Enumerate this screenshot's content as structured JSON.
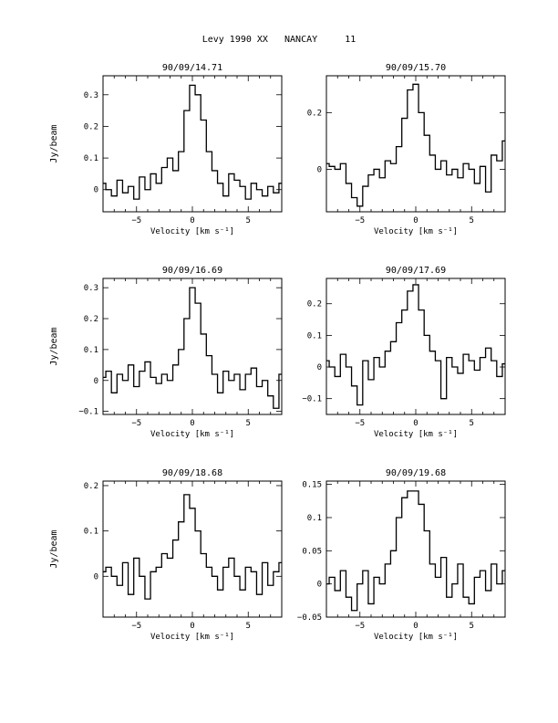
{
  "page_title": "Levy 1990 XX   NANCAY     11",
  "chart_data": [
    {
      "type": "line",
      "title": "90/09/14.71",
      "xlabel": "Velocity [km s⁻¹]",
      "ylabel": "Jy/beam",
      "xlim": [
        -8,
        8
      ],
      "ylim": [
        -0.07,
        0.36
      ],
      "xticks": [
        -5,
        0,
        5
      ],
      "xtick_labels": [
        "−5",
        "0",
        "5"
      ],
      "yticks": [
        0,
        0.1,
        0.2,
        0.3
      ],
      "ytick_labels": [
        "0",
        "0.1",
        "0.2",
        "0.3"
      ],
      "series": [
        {
          "x": [
            -8,
            -7.5,
            -7,
            -6.5,
            -6,
            -5.5,
            -5,
            -4.5,
            -4,
            -3.5,
            -3,
            -2.5,
            -2,
            -1.5,
            -1,
            -0.5,
            0,
            0.5,
            1,
            1.5,
            2,
            2.5,
            3,
            3.5,
            4,
            4.5,
            5,
            5.5,
            6,
            6.5,
            7,
            7.5,
            8
          ],
          "y": [
            0.02,
            0.0,
            -0.02,
            0.03,
            -0.01,
            0.01,
            -0.03,
            0.04,
            0.0,
            0.05,
            0.02,
            0.07,
            0.1,
            0.06,
            0.12,
            0.25,
            0.33,
            0.3,
            0.22,
            0.12,
            0.06,
            0.02,
            -0.02,
            0.05,
            0.03,
            0.01,
            -0.03,
            0.02,
            0.0,
            -0.02,
            0.01,
            -0.01,
            0.02
          ]
        }
      ]
    },
    {
      "type": "line",
      "title": "90/09/15.70",
      "xlabel": "Velocity [km s⁻¹]",
      "ylabel": "",
      "xlim": [
        -8,
        8
      ],
      "ylim": [
        -0.15,
        0.33
      ],
      "xticks": [
        -5,
        0,
        5
      ],
      "xtick_labels": [
        "−5",
        "0",
        "5"
      ],
      "yticks": [
        0,
        0.2
      ],
      "ytick_labels": [
        "0",
        "0.2"
      ],
      "series": [
        {
          "x": [
            -8,
            -7.5,
            -7,
            -6.5,
            -6,
            -5.5,
            -5,
            -4.5,
            -4,
            -3.5,
            -3,
            -2.5,
            -2,
            -1.5,
            -1,
            -0.5,
            0,
            0.5,
            1,
            1.5,
            2,
            2.5,
            3,
            3.5,
            4,
            4.5,
            5,
            5.5,
            6,
            6.5,
            7,
            7.5,
            8
          ],
          "y": [
            0.02,
            0.01,
            0.0,
            0.02,
            -0.05,
            -0.1,
            -0.13,
            -0.06,
            -0.02,
            0.0,
            -0.03,
            0.03,
            0.02,
            0.08,
            0.18,
            0.28,
            0.3,
            0.2,
            0.12,
            0.05,
            0.0,
            0.03,
            -0.02,
            0.0,
            -0.03,
            0.02,
            0.0,
            -0.05,
            0.01,
            -0.08,
            0.05,
            0.03,
            0.1
          ]
        }
      ]
    },
    {
      "type": "line",
      "title": "90/09/16.69",
      "xlabel": "Velocity [km s⁻¹]",
      "ylabel": "Jy/beam",
      "xlim": [
        -8,
        8
      ],
      "ylim": [
        -0.11,
        0.33
      ],
      "xticks": [
        -5,
        0,
        5
      ],
      "xtick_labels": [
        "−5",
        "0",
        "5"
      ],
      "yticks": [
        -0.1,
        0,
        0.1,
        0.2,
        0.3
      ],
      "ytick_labels": [
        "−0.1",
        "0",
        "0.1",
        "0.2",
        "0.3"
      ],
      "series": [
        {
          "x": [
            -8,
            -7.5,
            -7,
            -6.5,
            -6,
            -5.5,
            -5,
            -4.5,
            -4,
            -3.5,
            -3,
            -2.5,
            -2,
            -1.5,
            -1,
            -0.5,
            0,
            0.5,
            1,
            1.5,
            2,
            2.5,
            3,
            3.5,
            4,
            4.5,
            5,
            5.5,
            6,
            6.5,
            7,
            7.5,
            8
          ],
          "y": [
            0.01,
            0.03,
            -0.04,
            0.02,
            0.0,
            0.05,
            -0.02,
            0.03,
            0.06,
            0.01,
            -0.01,
            0.02,
            0.0,
            0.05,
            0.1,
            0.2,
            0.3,
            0.25,
            0.15,
            0.08,
            0.02,
            -0.04,
            0.03,
            0.0,
            0.02,
            -0.03,
            0.02,
            0.04,
            -0.02,
            0.0,
            -0.05,
            -0.09,
            0.02
          ]
        }
      ]
    },
    {
      "type": "line",
      "title": "90/09/17.69",
      "xlabel": "Velocity [km s⁻¹]",
      "ylabel": "",
      "xlim": [
        -8,
        8
      ],
      "ylim": [
        -0.15,
        0.28
      ],
      "xticks": [
        -5,
        0,
        5
      ],
      "xtick_labels": [
        "−5",
        "0",
        "5"
      ],
      "yticks": [
        -0.1,
        0,
        0.1,
        0.2
      ],
      "ytick_labels": [
        "−0.1",
        "0",
        "0.1",
        "0.2"
      ],
      "series": [
        {
          "x": [
            -8,
            -7.5,
            -7,
            -6.5,
            -6,
            -5.5,
            -5,
            -4.5,
            -4,
            -3.5,
            -3,
            -2.5,
            -2,
            -1.5,
            -1,
            -0.5,
            0,
            0.5,
            1,
            1.5,
            2,
            2.5,
            3,
            3.5,
            4,
            4.5,
            5,
            5.5,
            6,
            6.5,
            7,
            7.5,
            8
          ],
          "y": [
            0.02,
            0.0,
            -0.03,
            0.04,
            0.0,
            -0.06,
            -0.12,
            0.02,
            -0.04,
            0.03,
            0.0,
            0.05,
            0.08,
            0.14,
            0.18,
            0.24,
            0.26,
            0.18,
            0.1,
            0.05,
            0.02,
            -0.1,
            0.03,
            0.0,
            -0.02,
            0.04,
            0.02,
            -0.01,
            0.03,
            0.06,
            0.02,
            -0.03,
            0.01
          ]
        }
      ]
    },
    {
      "type": "line",
      "title": "90/09/18.68",
      "xlabel": "Velocity [km s⁻¹]",
      "ylabel": "Jy/beam",
      "xlim": [
        -8,
        8
      ],
      "ylim": [
        -0.09,
        0.21
      ],
      "xticks": [
        -5,
        0,
        5
      ],
      "xtick_labels": [
        "−5",
        "0",
        "5"
      ],
      "yticks": [
        0,
        0.1,
        0.2
      ],
      "ytick_labels": [
        "0",
        "0.1",
        "0.2"
      ],
      "series": [
        {
          "x": [
            -8,
            -7.5,
            -7,
            -6.5,
            -6,
            -5.5,
            -5,
            -4.5,
            -4,
            -3.5,
            -3,
            -2.5,
            -2,
            -1.5,
            -1,
            -0.5,
            0,
            0.5,
            1,
            1.5,
            2,
            2.5,
            3,
            3.5,
            4,
            4.5,
            5,
            5.5,
            6,
            6.5,
            7,
            7.5,
            8
          ],
          "y": [
            0.01,
            0.02,
            0.0,
            -0.02,
            0.03,
            -0.04,
            0.04,
            0.0,
            -0.05,
            0.01,
            0.02,
            0.05,
            0.04,
            0.08,
            0.12,
            0.18,
            0.15,
            0.1,
            0.05,
            0.02,
            0.0,
            -0.03,
            0.02,
            0.04,
            0.0,
            -0.03,
            0.02,
            0.01,
            -0.04,
            0.03,
            -0.02,
            0.01,
            0.03
          ]
        }
      ]
    },
    {
      "type": "line",
      "title": "90/09/19.68",
      "xlabel": "Velocity [km s⁻¹]",
      "ylabel": "",
      "xlim": [
        -8,
        8
      ],
      "ylim": [
        -0.05,
        0.155
      ],
      "xticks": [
        -5,
        0,
        5
      ],
      "xtick_labels": [
        "−5",
        "0",
        "5"
      ],
      "yticks": [
        -0.05,
        0,
        0.05,
        0.1,
        0.15
      ],
      "ytick_labels": [
        "−0.05",
        "0",
        "0.05",
        "0.1",
        "0.15"
      ],
      "series": [
        {
          "x": [
            -8,
            -7.5,
            -7,
            -6.5,
            -6,
            -5.5,
            -5,
            -4.5,
            -4,
            -3.5,
            -3,
            -2.5,
            -2,
            -1.5,
            -1,
            -0.5,
            0,
            0.5,
            1,
            1.5,
            2,
            2.5,
            3,
            3.5,
            4,
            4.5,
            5,
            5.5,
            6,
            6.5,
            7,
            7.5,
            8
          ],
          "y": [
            0.0,
            0.01,
            -0.01,
            0.02,
            -0.02,
            -0.04,
            0.0,
            0.02,
            -0.03,
            0.01,
            0.0,
            0.03,
            0.05,
            0.1,
            0.13,
            0.14,
            0.14,
            0.12,
            0.08,
            0.03,
            0.01,
            0.04,
            -0.02,
            0.0,
            0.03,
            -0.02,
            -0.03,
            0.01,
            0.02,
            -0.01,
            0.03,
            0.0,
            0.02
          ]
        }
      ]
    }
  ]
}
